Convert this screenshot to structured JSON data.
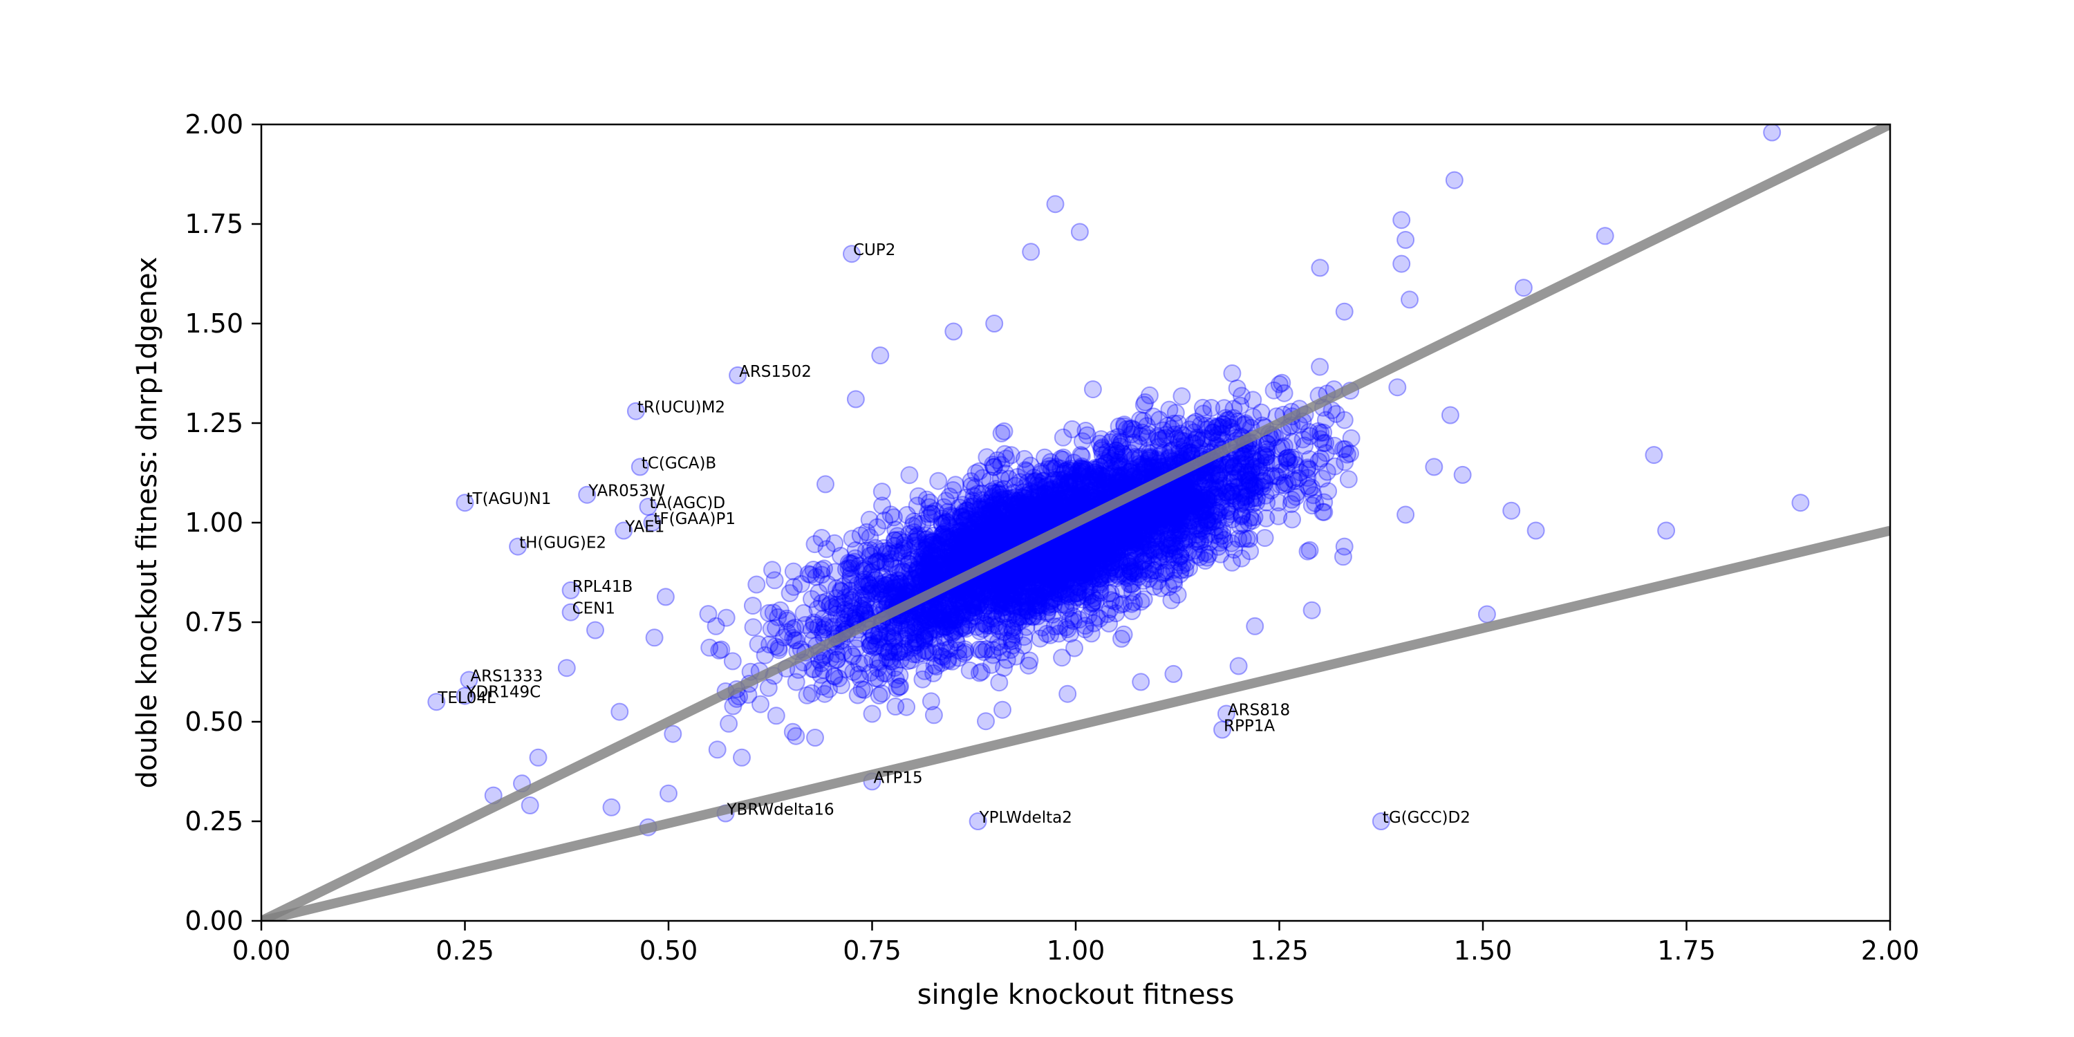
{
  "chart_data": {
    "type": "scatter",
    "xlabel": "single knockout fitness",
    "ylabel": "double knockout fitness: dnrp1dgenex",
    "xlim": [
      0,
      2
    ],
    "ylim": [
      0,
      2
    ],
    "x_ticks": [
      "0.00",
      "0.25",
      "0.50",
      "0.75",
      "1.00",
      "1.25",
      "1.50",
      "1.75",
      "2.00"
    ],
    "y_ticks": [
      "0.00",
      "0.25",
      "0.50",
      "0.75",
      "1.00",
      "1.25",
      "1.50",
      "1.75",
      "2.00"
    ],
    "grid": false,
    "point_color": "#0000ff",
    "point_alpha": 0.2,
    "reference_lines": [
      {
        "slope": 1.0,
        "color": "#808080"
      },
      {
        "slope": 0.49,
        "color": "#808080"
      }
    ],
    "annotated_points": [
      {
        "label": "CUP2",
        "x": 0.725,
        "y": 1.675
      },
      {
        "label": "ARS1502",
        "x": 0.585,
        "y": 1.37
      },
      {
        "label": "tR(UCU)M2",
        "x": 0.46,
        "y": 1.28
      },
      {
        "label": "tC(GCA)B",
        "x": 0.465,
        "y": 1.14
      },
      {
        "label": "tT(AGU)N1",
        "x": 0.25,
        "y": 1.05
      },
      {
        "label": "YAR053W",
        "x": 0.4,
        "y": 1.07
      },
      {
        "label": "tA(AGC)D",
        "x": 0.475,
        "y": 1.04
      },
      {
        "label": "tF(GAA)P1",
        "x": 0.48,
        "y": 1.0
      },
      {
        "label": "YAE1",
        "x": 0.445,
        "y": 0.98
      },
      {
        "label": "tH(GUG)E2",
        "x": 0.315,
        "y": 0.94
      },
      {
        "label": "RPL41B",
        "x": 0.38,
        "y": 0.83
      },
      {
        "label": "CEN1",
        "x": 0.38,
        "y": 0.775
      },
      {
        "label": "ARS1333",
        "x": 0.255,
        "y": 0.605
      },
      {
        "label": "YDR149C",
        "x": 0.25,
        "y": 0.565
      },
      {
        "label": "TEL04L",
        "x": 0.215,
        "y": 0.55
      },
      {
        "label": "ARS818",
        "x": 1.185,
        "y": 0.52
      },
      {
        "label": "RPP1A",
        "x": 1.18,
        "y": 0.48
      },
      {
        "label": "ATP15",
        "x": 0.75,
        "y": 0.35
      },
      {
        "label": "YBRWdelta16",
        "x": 0.57,
        "y": 0.27
      },
      {
        "label": "YPLWdelta2",
        "x": 0.88,
        "y": 0.25
      },
      {
        "label": "tG(GCC)D2",
        "x": 1.375,
        "y": 0.25
      }
    ],
    "sparse_points": [
      {
        "x": 1.855,
        "y": 1.98
      },
      {
        "x": 1.465,
        "y": 1.86
      },
      {
        "x": 0.975,
        "y": 1.8
      },
      {
        "x": 1.005,
        "y": 1.73
      },
      {
        "x": 1.4,
        "y": 1.76
      },
      {
        "x": 1.405,
        "y": 1.71
      },
      {
        "x": 1.65,
        "y": 1.72
      },
      {
        "x": 0.945,
        "y": 1.68
      },
      {
        "x": 1.4,
        "y": 1.65
      },
      {
        "x": 1.55,
        "y": 1.59
      },
      {
        "x": 1.41,
        "y": 1.56
      },
      {
        "x": 1.3,
        "y": 1.64
      },
      {
        "x": 1.33,
        "y": 1.53
      },
      {
        "x": 1.46,
        "y": 1.27
      },
      {
        "x": 1.475,
        "y": 1.12
      },
      {
        "x": 1.44,
        "y": 1.14
      },
      {
        "x": 1.71,
        "y": 1.17
      },
      {
        "x": 1.89,
        "y": 1.05
      },
      {
        "x": 1.535,
        "y": 1.03
      },
      {
        "x": 1.565,
        "y": 0.98
      },
      {
        "x": 1.725,
        "y": 0.98
      },
      {
        "x": 1.505,
        "y": 0.77
      },
      {
        "x": 1.405,
        "y": 1.02
      },
      {
        "x": 1.395,
        "y": 1.34
      },
      {
        "x": 1.29,
        "y": 0.78
      },
      {
        "x": 1.2,
        "y": 0.64
      },
      {
        "x": 0.76,
        "y": 1.42
      },
      {
        "x": 0.73,
        "y": 1.31
      },
      {
        "x": 0.9,
        "y": 1.5
      },
      {
        "x": 0.85,
        "y": 1.48
      },
      {
        "x": 0.34,
        "y": 0.41
      },
      {
        "x": 0.32,
        "y": 0.345
      },
      {
        "x": 0.285,
        "y": 0.315
      },
      {
        "x": 0.33,
        "y": 0.29
      },
      {
        "x": 0.43,
        "y": 0.285
      },
      {
        "x": 0.475,
        "y": 0.235
      },
      {
        "x": 0.5,
        "y": 0.32
      },
      {
        "x": 0.59,
        "y": 0.41
      },
      {
        "x": 0.56,
        "y": 0.43
      },
      {
        "x": 0.375,
        "y": 0.635
      },
      {
        "x": 0.41,
        "y": 0.73
      },
      {
        "x": 0.44,
        "y": 0.525
      },
      {
        "x": 0.68,
        "y": 0.46
      },
      {
        "x": 0.75,
        "y": 0.52
      },
      {
        "x": 0.91,
        "y": 0.53
      },
      {
        "x": 0.99,
        "y": 0.57
      },
      {
        "x": 1.08,
        "y": 0.6
      },
      {
        "x": 1.12,
        "y": 0.62
      },
      {
        "x": 1.22,
        "y": 0.74
      },
      {
        "x": 1.33,
        "y": 0.94
      }
    ],
    "dense_cluster": {
      "description_free": true,
      "center_x": 0.97,
      "center_y": 0.95,
      "sd_x": 0.14,
      "sd_y": 0.14,
      "correlation": 0.72,
      "x_range": [
        0.45,
        1.35
      ],
      "y_range": [
        0.45,
        1.5
      ],
      "count": 4200
    }
  }
}
